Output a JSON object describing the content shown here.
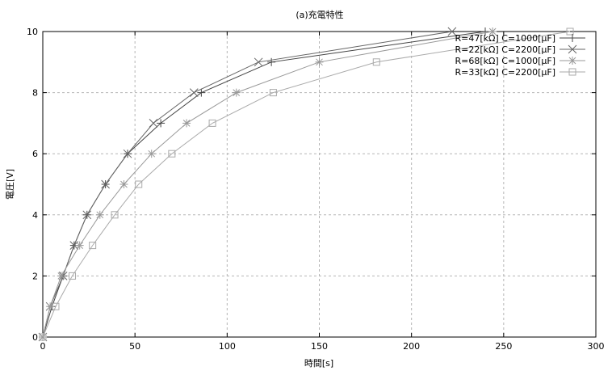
{
  "chart_data": {
    "type": "line",
    "title": "(a)充電特性",
    "xlabel": "時間[s]",
    "ylabel": "電圧[V]",
    "xlim": [
      0,
      300
    ],
    "ylim": [
      0,
      10
    ],
    "xticks": [
      0,
      50,
      100,
      150,
      200,
      250,
      300
    ],
    "yticks": [
      0,
      2,
      4,
      6,
      8,
      10
    ],
    "grid": true,
    "legend_position": "top-right",
    "series": [
      {
        "name": "R=47[kΩ] C=1000[μF]",
        "marker": "plus",
        "color": "#444444",
        "points": [
          [
            0,
            0
          ],
          [
            5,
            1
          ],
          [
            11,
            2
          ],
          [
            17,
            3
          ],
          [
            24,
            4
          ],
          [
            34,
            5
          ],
          [
            46,
            6
          ],
          [
            64,
            7
          ],
          [
            86,
            8
          ],
          [
            124,
            9
          ],
          [
            240,
            10
          ]
        ]
      },
      {
        "name": "R=22[kΩ] C=2200[μF]",
        "marker": "cross",
        "color": "#666666",
        "points": [
          [
            0,
            0
          ],
          [
            4,
            1
          ],
          [
            11,
            2
          ],
          [
            17,
            3
          ],
          [
            24,
            4
          ],
          [
            34,
            5
          ],
          [
            46,
            6
          ],
          [
            60,
            7
          ],
          [
            82,
            8
          ],
          [
            117,
            9
          ],
          [
            222,
            10
          ]
        ]
      },
      {
        "name": "R=68[kΩ] C=1000[μF]",
        "marker": "star",
        "color": "#999999",
        "points": [
          [
            0,
            0
          ],
          [
            4,
            1
          ],
          [
            10,
            2
          ],
          [
            20,
            3
          ],
          [
            31,
            4
          ],
          [
            44,
            5
          ],
          [
            59,
            6
          ],
          [
            78,
            7
          ],
          [
            105,
            8
          ],
          [
            150,
            9
          ],
          [
            244,
            10
          ]
        ]
      },
      {
        "name": "R=33[kΩ] C=2200[μF]",
        "marker": "square",
        "color": "#aaaaaa",
        "points": [
          [
            0,
            0
          ],
          [
            7,
            1
          ],
          [
            16,
            2
          ],
          [
            27,
            3
          ],
          [
            39,
            4
          ],
          [
            52,
            5
          ],
          [
            70,
            6
          ],
          [
            92,
            7
          ],
          [
            125,
            8
          ],
          [
            181,
            9
          ],
          [
            286,
            10
          ]
        ]
      }
    ]
  }
}
